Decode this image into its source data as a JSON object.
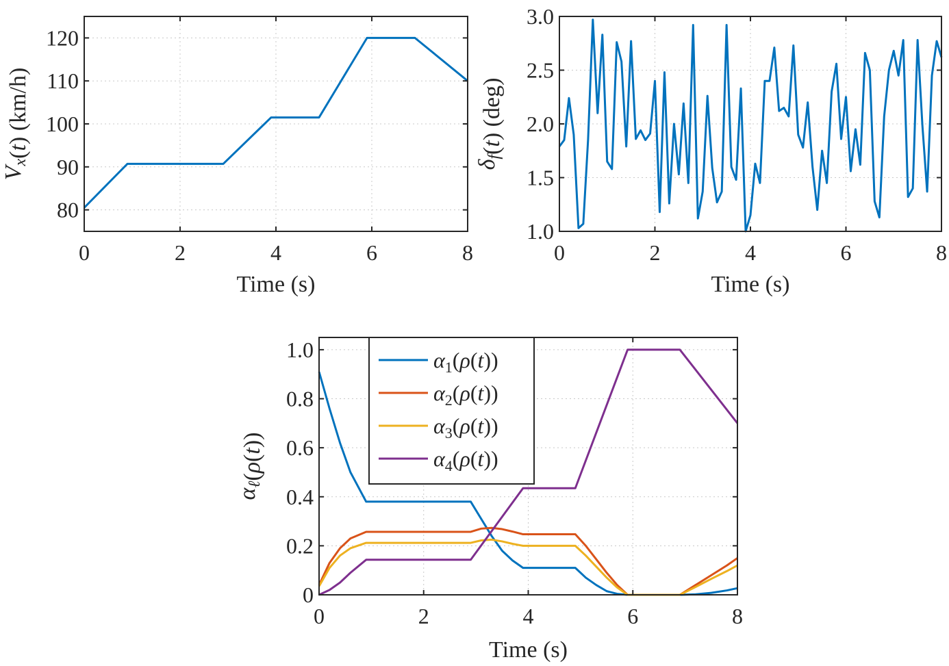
{
  "chart_data": [
    {
      "type": "line",
      "xlabel": "Time (s)",
      "ylabel": "V_x(t) (km/h)",
      "xlim": [
        0,
        8
      ],
      "ylim": [
        75,
        125
      ],
      "xticks": [
        "0",
        "2",
        "4",
        "6",
        "8"
      ],
      "xtick_values": [
        0,
        2,
        4,
        6,
        8
      ],
      "yticks": [
        "80",
        "90",
        "100",
        "110",
        "120"
      ],
      "ytick_values": [
        80,
        90,
        100,
        110,
        120
      ],
      "grid": true,
      "series": [
        {
          "color": "#0072bd",
          "x": [
            0,
            0.9,
            2.9,
            3.9,
            4.9,
            5.9,
            6.9,
            8.0
          ],
          "y": [
            80.5,
            90.7,
            90.7,
            101.5,
            101.5,
            120.0,
            120.0,
            110.0
          ]
        }
      ]
    },
    {
      "type": "line",
      "xlabel": "Time (s)",
      "ylabel": "δ_f(t) (deg)",
      "xlim": [
        0,
        8
      ],
      "ylim": [
        1.0,
        3.0
      ],
      "xticks": [
        "0",
        "2",
        "4",
        "6",
        "8"
      ],
      "xtick_values": [
        0,
        2,
        4,
        6,
        8
      ],
      "yticks": [
        "1.0",
        "1.5",
        "2.0",
        "2.5",
        "3.0"
      ],
      "ytick_values": [
        1.0,
        1.5,
        2.0,
        2.5,
        3.0
      ],
      "grid": true,
      "series": [
        {
          "color": "#0072bd",
          "x": [
            0,
            0.1,
            0.2,
            0.3,
            0.4,
            0.5,
            0.6,
            0.7,
            0.8,
            0.9,
            1.0,
            1.1,
            1.2,
            1.3,
            1.4,
            1.5,
            1.6,
            1.7,
            1.8,
            1.9,
            2.0,
            2.1,
            2.2,
            2.3,
            2.4,
            2.5,
            2.6,
            2.7,
            2.8,
            2.9,
            3.0,
            3.1,
            3.2,
            3.3,
            3.4,
            3.5,
            3.6,
            3.7,
            3.8,
            3.9,
            4.0,
            4.1,
            4.2,
            4.3,
            4.4,
            4.5,
            4.6,
            4.7,
            4.8,
            4.9,
            5.0,
            5.1,
            5.2,
            5.3,
            5.4,
            5.5,
            5.6,
            5.7,
            5.8,
            5.9,
            6.0,
            6.1,
            6.2,
            6.3,
            6.4,
            6.5,
            6.6,
            6.7,
            6.8,
            6.9,
            7.0,
            7.1,
            7.2,
            7.3,
            7.4,
            7.5,
            7.6,
            7.7,
            7.8,
            7.9,
            8.0
          ],
          "y": [
            1.79,
            1.85,
            2.24,
            1.9,
            1.03,
            1.07,
            1.85,
            2.97,
            2.1,
            2.83,
            1.65,
            1.58,
            2.76,
            2.58,
            1.79,
            2.77,
            1.86,
            1.94,
            1.85,
            1.91,
            2.4,
            1.18,
            2.48,
            1.26,
            2.0,
            1.53,
            2.19,
            1.45,
            2.92,
            1.12,
            1.37,
            2.26,
            1.59,
            1.27,
            1.37,
            2.92,
            1.6,
            1.48,
            2.33,
            1.0,
            1.15,
            1.63,
            1.45,
            2.4,
            2.4,
            2.71,
            2.12,
            2.15,
            2.07,
            2.73,
            1.9,
            1.78,
            2.2,
            1.6,
            1.2,
            1.75,
            1.45,
            2.3,
            2.56,
            1.86,
            2.25,
            1.56,
            1.95,
            1.62,
            2.66,
            2.5,
            1.28,
            1.13,
            2.07,
            2.5,
            2.68,
            2.45,
            2.78,
            1.32,
            1.4,
            2.78,
            1.99,
            1.37,
            2.45,
            2.77,
            2.62
          ]
        }
      ]
    },
    {
      "type": "line",
      "xlabel": "Time (s)",
      "ylabel": "α_ℓ(ρ(t))",
      "xlim": [
        0,
        8
      ],
      "ylim": [
        0,
        1.05
      ],
      "xticks": [
        "0",
        "2",
        "4",
        "6",
        "8"
      ],
      "xtick_values": [
        0,
        2,
        4,
        6,
        8
      ],
      "yticks": [
        "0",
        "0.2",
        "0.4",
        "0.6",
        "0.8",
        "1.0"
      ],
      "ytick_values": [
        0,
        0.2,
        0.4,
        0.6,
        0.8,
        1.0
      ],
      "grid": true,
      "legend_position": "top-left",
      "series": [
        {
          "name": "α1(ρ(t))",
          "color": "#0072bd",
          "x": [
            0,
            0.2,
            0.4,
            0.6,
            0.9,
            2.9,
            3.1,
            3.3,
            3.5,
            3.7,
            3.9,
            4.9,
            5.1,
            5.3,
            5.5,
            5.7,
            5.9,
            6.9,
            7.2,
            7.5,
            7.8,
            8.0
          ],
          "y": [
            0.91,
            0.76,
            0.62,
            0.5,
            0.38,
            0.38,
            0.31,
            0.24,
            0.18,
            0.14,
            0.11,
            0.11,
            0.07,
            0.04,
            0.015,
            0.004,
            0.0,
            0.0,
            0.002,
            0.008,
            0.018,
            0.027
          ]
        },
        {
          "name": "α2(ρ(t))",
          "color": "#d95319",
          "x": [
            0,
            0.2,
            0.4,
            0.6,
            0.9,
            2.9,
            3.1,
            3.3,
            3.5,
            3.7,
            3.9,
            4.9,
            5.1,
            5.3,
            5.5,
            5.7,
            5.9,
            6.9,
            7.2,
            7.5,
            7.8,
            8.0
          ],
          "y": [
            0.04,
            0.13,
            0.19,
            0.23,
            0.257,
            0.257,
            0.27,
            0.273,
            0.268,
            0.258,
            0.247,
            0.247,
            0.2,
            0.145,
            0.09,
            0.04,
            0.0,
            0.0,
            0.04,
            0.08,
            0.12,
            0.15
          ]
        },
        {
          "name": "α3(ρ(t))",
          "color": "#edb120",
          "x": [
            0,
            0.2,
            0.4,
            0.6,
            0.9,
            2.9,
            3.1,
            3.3,
            3.5,
            3.7,
            3.9,
            4.9,
            5.1,
            5.3,
            5.5,
            5.7,
            5.9,
            6.9,
            7.2,
            7.5,
            7.8,
            8.0
          ],
          "y": [
            0.035,
            0.11,
            0.16,
            0.19,
            0.212,
            0.212,
            0.222,
            0.225,
            0.218,
            0.208,
            0.2,
            0.2,
            0.16,
            0.115,
            0.07,
            0.03,
            0.0,
            0.0,
            0.032,
            0.065,
            0.097,
            0.12
          ]
        },
        {
          "name": "α4(ρ(t))",
          "color": "#7e2f8e",
          "x": [
            0,
            0.2,
            0.4,
            0.6,
            0.9,
            2.9,
            3.9,
            4.9,
            5.9,
            6.9,
            8.0
          ],
          "y": [
            0.0,
            0.02,
            0.05,
            0.09,
            0.143,
            0.143,
            0.435,
            0.435,
            1.0,
            1.0,
            0.7
          ]
        }
      ]
    }
  ]
}
